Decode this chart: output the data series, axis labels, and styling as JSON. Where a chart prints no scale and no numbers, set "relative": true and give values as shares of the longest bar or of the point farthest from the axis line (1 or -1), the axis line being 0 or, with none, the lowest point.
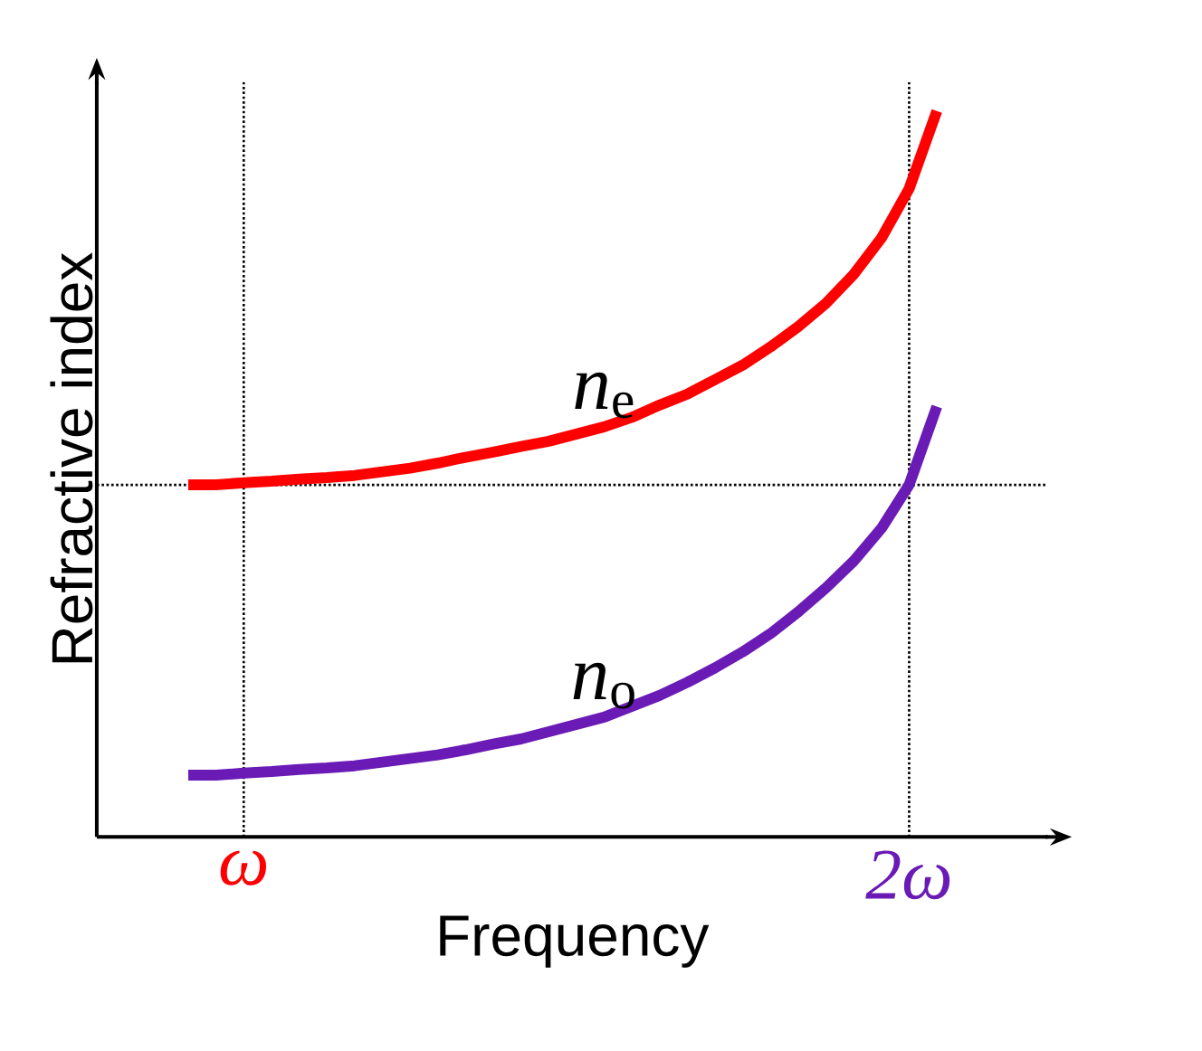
{
  "chart_data": {
    "type": "line",
    "relative": true,
    "xlabel": "Frequency",
    "ylabel": "Refractive index",
    "categories": [
      null,
      null,
      "ω",
      null,
      null,
      null,
      null,
      null,
      null,
      null,
      null,
      null,
      null,
      null,
      null,
      null,
      null,
      null,
      null,
      null,
      null,
      null,
      null,
      null,
      null,
      null,
      "2ω",
      null
    ],
    "series": [
      {
        "color": "#ff0000",
        "values": [
          0.485,
          0.485,
          0.488,
          0.49,
          0.493,
          0.495,
          0.498,
          0.503,
          0.508,
          0.515,
          0.523,
          0.53,
          0.538,
          0.545,
          0.555,
          0.565,
          0.578,
          0.595,
          0.61,
          0.63,
          0.65,
          0.675,
          0.703,
          0.735,
          0.775,
          0.825,
          0.893,
          1.0
        ]
      },
      {
        "color": "#6a1bb5",
        "values": [
          0.085,
          0.085,
          0.088,
          0.09,
          0.093,
          0.095,
          0.098,
          0.103,
          0.108,
          0.113,
          0.12,
          0.128,
          0.135,
          0.145,
          0.155,
          0.165,
          0.18,
          0.195,
          0.213,
          0.233,
          0.255,
          0.28,
          0.31,
          0.343,
          0.38,
          0.425,
          0.485,
          0.593
        ]
      }
    ],
    "annotations": [
      "*n*$_{e}$",
      "*n*$_{o}$"
    ],
    "ref_lines": [
      {
        "axis": "y",
        "value": 0.485,
        "line_style": "dotted",
        "color": "#000000"
      },
      {
        "axis": "x",
        "value": "ω",
        "line_style": "dotted",
        "color": "#000000"
      },
      {
        "axis": "x",
        "value": "2ω",
        "line_style": "dotted",
        "color": "#000000"
      }
    ]
  }
}
